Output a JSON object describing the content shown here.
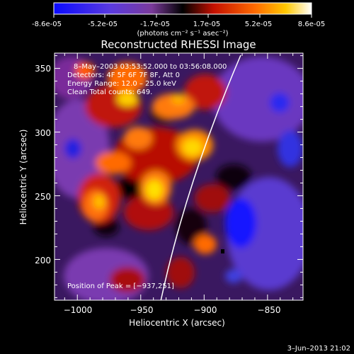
{
  "colorbar": {
    "tick_labels": [
      "-8.6e-05",
      "-5.2e-05",
      "-1.7e-05",
      "1.7e-05",
      "5.2e-05",
      "8.6e-05"
    ],
    "unit_label": "(photons cm⁻² s⁻¹ asec⁻²)",
    "colors": {
      "negative_end": "#1010ff",
      "negative_mid": "#6a3ad6",
      "zero": "#000000",
      "positive_low": "#c01000",
      "positive_mid": "#ff6a00",
      "positive_high": "#ffd400",
      "positive_end": "#ffffff"
    }
  },
  "plot": {
    "title": "Reconstructed RHESSI Image",
    "xlabel": "Heliocentric X (arcsec)",
    "ylabel": "Heliocentric Y (arcsec)",
    "x_ticks": [
      "−1000",
      "−950",
      "−900",
      "−850"
    ],
    "y_ticks": [
      "200",
      "250",
      "300",
      "350"
    ],
    "x_range": [
      -1018,
      -822
    ],
    "y_range": [
      168,
      362
    ]
  },
  "annotations": {
    "time_range": "8–May–2003 03:53:52.000 to 03:56:08.000",
    "detectors": "Detectors: 4F 5F 6F 7F 8F, Att 0",
    "energy": "Energy Range: 12.0 – 25.0 keV",
    "clean": "Clean     Total counts: 649.",
    "peak": "Position of Peak = [−937,251]"
  },
  "footer": {
    "timestamp": "3–Jun–2013 21:02"
  }
}
